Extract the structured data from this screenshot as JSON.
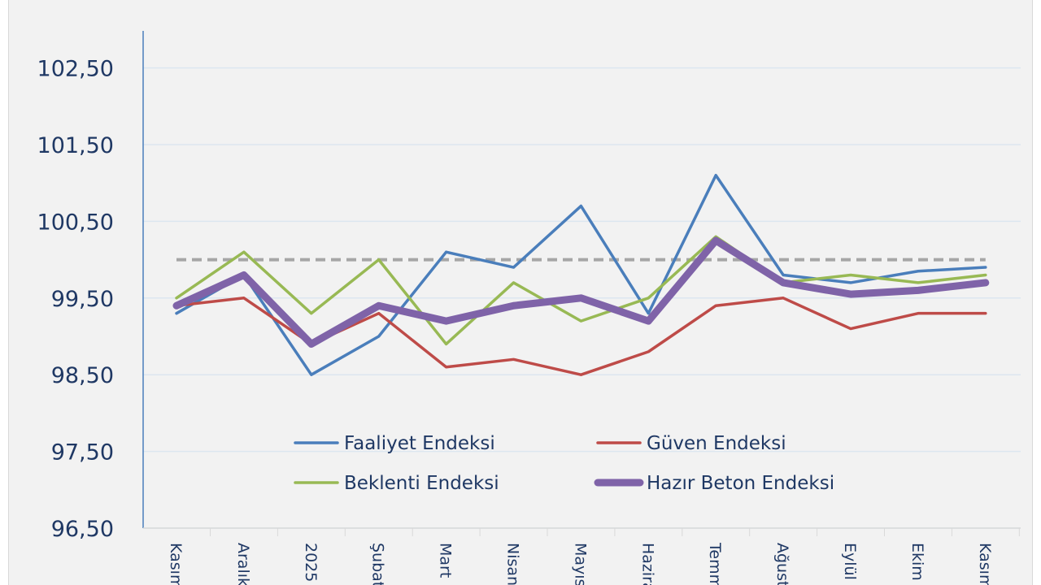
{
  "chart_data": {
    "type": "line",
    "categories": [
      "Kasım",
      "Aralık",
      "2025",
      "Şubat",
      "Mart",
      "Nisan",
      "Mayıs",
      "Haziran",
      "Temmuz",
      "Ağustos",
      "Eylül",
      "Ekim",
      "Kasım"
    ],
    "ylim": [
      96.5,
      103.0
    ],
    "yticks": [
      "96,50",
      "97,50",
      "98,50",
      "99,50",
      "100,50",
      "101,50",
      "102,50"
    ],
    "ytick_values": [
      96.5,
      97.5,
      98.5,
      99.5,
      100.5,
      101.5,
      102.5
    ],
    "grid": true,
    "reference_line": {
      "value": 100,
      "style": "dashed",
      "color": "#a6a6a6"
    },
    "legend_placement": "bottom-center inside",
    "series": [
      {
        "name": "Faaliyet Endeksi",
        "color": "#4a7ebb",
        "values": [
          99.3,
          99.8,
          98.5,
          99.0,
          100.1,
          99.9,
          100.7,
          99.3,
          101.1,
          99.8,
          99.7,
          99.85,
          99.9
        ]
      },
      {
        "name": "Güven Endeksi",
        "color": "#be4b48",
        "values": [
          99.4,
          99.5,
          98.9,
          99.3,
          98.6,
          98.7,
          98.5,
          98.8,
          99.4,
          99.5,
          99.1,
          99.3,
          99.3
        ]
      },
      {
        "name": "Beklenti Endeksi",
        "color": "#98b954",
        "values": [
          99.5,
          100.1,
          99.3,
          100.0,
          98.9,
          99.7,
          99.2,
          99.5,
          100.3,
          99.7,
          99.8,
          99.7,
          99.8
        ]
      },
      {
        "name": "Hazır Beton Endeksi",
        "color": "#7f63a8",
        "values": [
          99.4,
          99.8,
          98.9,
          99.4,
          99.2,
          99.4,
          99.5,
          99.2,
          100.25,
          99.7,
          99.55,
          99.6,
          99.7
        ]
      }
    ]
  }
}
